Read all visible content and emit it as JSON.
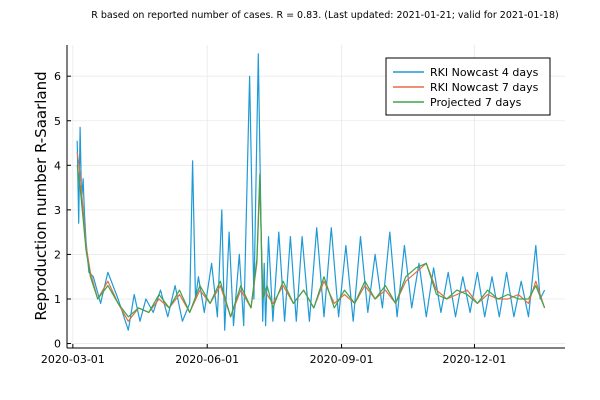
{
  "chart_data": {
    "type": "line",
    "title": "R based on reported number of cases. R = 0.83. (Last updated: 2021-01-21; valid for 2021-01-18)",
    "xlabel": "",
    "ylabel": "Reproduction number R-Saarland",
    "x_range": [
      "2020-02-26",
      "2021-02-01"
    ],
    "ylim": [
      -0.1,
      6.7
    ],
    "y_ticks": [
      0,
      1,
      2,
      3,
      4,
      5,
      6
    ],
    "x_ticks": [
      "2020-03-01",
      "2020-06-01",
      "2020-09-01",
      "2020-12-01"
    ],
    "grid": true,
    "legend": "top-right",
    "colors": {
      "series1": "#1f9ad6",
      "series2": "#e26f46",
      "series3": "#3da44d"
    },
    "series": [
      {
        "name": "RKI Nowcast 4 days",
        "x": [
          "2020-03-04",
          "2020-03-05",
          "2020-03-06",
          "2020-03-07",
          "2020-03-08",
          "2020-03-09",
          "2020-03-10",
          "2020-03-12",
          "2020-03-15",
          "2020-03-20",
          "2020-03-25",
          "2020-04-01",
          "2020-04-08",
          "2020-04-12",
          "2020-04-16",
          "2020-04-20",
          "2020-04-25",
          "2020-04-30",
          "2020-05-05",
          "2020-05-10",
          "2020-05-15",
          "2020-05-20",
          "2020-05-22",
          "2020-05-24",
          "2020-05-26",
          "2020-05-30",
          "2020-06-04",
          "2020-06-08",
          "2020-06-11",
          "2020-06-13",
          "2020-06-16",
          "2020-06-19",
          "2020-06-23",
          "2020-06-26",
          "2020-06-30",
          "2020-07-03",
          "2020-07-06",
          "2020-07-08",
          "2020-07-09",
          "2020-07-10",
          "2020-07-11",
          "2020-07-13",
          "2020-07-16",
          "2020-07-20",
          "2020-07-24",
          "2020-07-28",
          "2020-08-01",
          "2020-08-05",
          "2020-08-10",
          "2020-08-15",
          "2020-08-20",
          "2020-08-25",
          "2020-08-30",
          "2020-09-04",
          "2020-09-09",
          "2020-09-14",
          "2020-09-19",
          "2020-09-24",
          "2020-09-29",
          "2020-10-04",
          "2020-10-09",
          "2020-10-14",
          "2020-10-19",
          "2020-10-24",
          "2020-10-29",
          "2020-11-03",
          "2020-11-08",
          "2020-11-13",
          "2020-11-18",
          "2020-11-23",
          "2020-11-28",
          "2020-12-03",
          "2020-12-08",
          "2020-12-13",
          "2020-12-18",
          "2020-12-23",
          "2020-12-28",
          "2021-01-02",
          "2021-01-07",
          "2021-01-12",
          "2021-01-15",
          "2021-01-18"
        ],
        "values": [
          4.55,
          2.7,
          4.85,
          3.2,
          3.7,
          2.9,
          2.3,
          1.6,
          1.5,
          0.9,
          1.6,
          1.0,
          0.3,
          1.1,
          0.5,
          1.0,
          0.7,
          1.2,
          0.6,
          1.3,
          0.5,
          0.9,
          4.1,
          1.0,
          1.5,
          0.7,
          1.8,
          0.6,
          3.0,
          0.3,
          2.5,
          0.4,
          2.0,
          0.4,
          6.0,
          1.0,
          6.5,
          2.4,
          0.5,
          1.8,
          0.4,
          2.4,
          0.5,
          2.5,
          0.5,
          2.4,
          0.5,
          2.4,
          0.5,
          2.6,
          0.6,
          2.6,
          0.6,
          2.2,
          0.5,
          2.4,
          0.7,
          2.0,
          0.8,
          2.5,
          0.6,
          2.2,
          0.8,
          1.8,
          0.6,
          1.7,
          0.7,
          1.6,
          0.6,
          1.5,
          0.7,
          1.6,
          0.6,
          1.5,
          0.6,
          1.6,
          0.6,
          1.4,
          0.6,
          2.2,
          1.0,
          1.2
        ]
      },
      {
        "name": "RKI Nowcast 7 days",
        "x": [
          "2020-03-04",
          "2020-03-06",
          "2020-03-08",
          "2020-03-10",
          "2020-03-13",
          "2020-03-18",
          "2020-03-25",
          "2020-04-01",
          "2020-04-08",
          "2020-04-15",
          "2020-04-22",
          "2020-04-29",
          "2020-05-06",
          "2020-05-13",
          "2020-05-20",
          "2020-05-27",
          "2020-06-03",
          "2020-06-10",
          "2020-06-17",
          "2020-06-24",
          "2020-07-01",
          "2020-07-05",
          "2020-07-07",
          "2020-07-09",
          "2020-07-12",
          "2020-07-16",
          "2020-07-23",
          "2020-07-30",
          "2020-08-06",
          "2020-08-13",
          "2020-08-20",
          "2020-08-27",
          "2020-09-03",
          "2020-09-10",
          "2020-09-17",
          "2020-09-24",
          "2020-10-01",
          "2020-10-08",
          "2020-10-15",
          "2020-10-22",
          "2020-10-29",
          "2020-11-05",
          "2020-11-12",
          "2020-11-19",
          "2020-11-26",
          "2020-12-03",
          "2020-12-10",
          "2020-12-17",
          "2020-12-24",
          "2020-12-31",
          "2021-01-07",
          "2021-01-12",
          "2021-01-18"
        ],
        "values": [
          4.3,
          3.8,
          3.0,
          2.2,
          1.6,
          1.0,
          1.4,
          0.9,
          0.5,
          0.8,
          0.7,
          1.0,
          0.8,
          1.1,
          0.7,
          1.2,
          0.9,
          1.3,
          0.6,
          1.2,
          0.8,
          1.8,
          3.6,
          1.2,
          1.1,
          0.9,
          1.3,
          0.9,
          1.2,
          0.8,
          1.4,
          0.9,
          1.1,
          0.9,
          1.3,
          1.0,
          1.2,
          0.9,
          1.4,
          1.6,
          1.8,
          1.2,
          1.0,
          1.1,
          1.2,
          0.9,
          1.1,
          1.0,
          1.0,
          1.1,
          0.9,
          1.4,
          0.8
        ]
      },
      {
        "name": "Projected 7 days",
        "x": [
          "2020-03-04",
          "2020-03-06",
          "2020-03-08",
          "2020-03-10",
          "2020-03-13",
          "2020-03-18",
          "2020-03-25",
          "2020-04-01",
          "2020-04-08",
          "2020-04-15",
          "2020-04-22",
          "2020-04-29",
          "2020-05-06",
          "2020-05-13",
          "2020-05-20",
          "2020-05-27",
          "2020-06-03",
          "2020-06-10",
          "2020-06-17",
          "2020-06-24",
          "2020-07-01",
          "2020-07-05",
          "2020-07-07",
          "2020-07-09",
          "2020-07-12",
          "2020-07-16",
          "2020-07-23",
          "2020-07-30",
          "2020-08-06",
          "2020-08-13",
          "2020-08-20",
          "2020-08-27",
          "2020-09-03",
          "2020-09-10",
          "2020-09-17",
          "2020-09-24",
          "2020-10-01",
          "2020-10-08",
          "2020-10-15",
          "2020-10-22",
          "2020-10-29",
          "2020-11-05",
          "2020-11-12",
          "2020-11-19",
          "2020-11-26",
          "2020-12-03",
          "2020-12-10",
          "2020-12-17",
          "2020-12-24",
          "2020-12-31",
          "2021-01-07",
          "2021-01-12",
          "2021-01-18"
        ],
        "values": [
          4.0,
          3.5,
          2.8,
          2.1,
          1.5,
          1.0,
          1.3,
          0.9,
          0.6,
          0.8,
          0.7,
          1.1,
          0.8,
          1.2,
          0.7,
          1.3,
          0.9,
          1.4,
          0.6,
          1.3,
          0.8,
          1.9,
          3.8,
          1.0,
          1.3,
          0.8,
          1.4,
          0.9,
          1.2,
          0.8,
          1.5,
          0.8,
          1.2,
          0.9,
          1.4,
          1.0,
          1.3,
          0.9,
          1.5,
          1.7,
          1.8,
          1.1,
          1.0,
          1.2,
          1.1,
          0.9,
          1.2,
          1.0,
          1.1,
          1.0,
          1.0,
          1.3,
          0.8
        ]
      }
    ]
  }
}
